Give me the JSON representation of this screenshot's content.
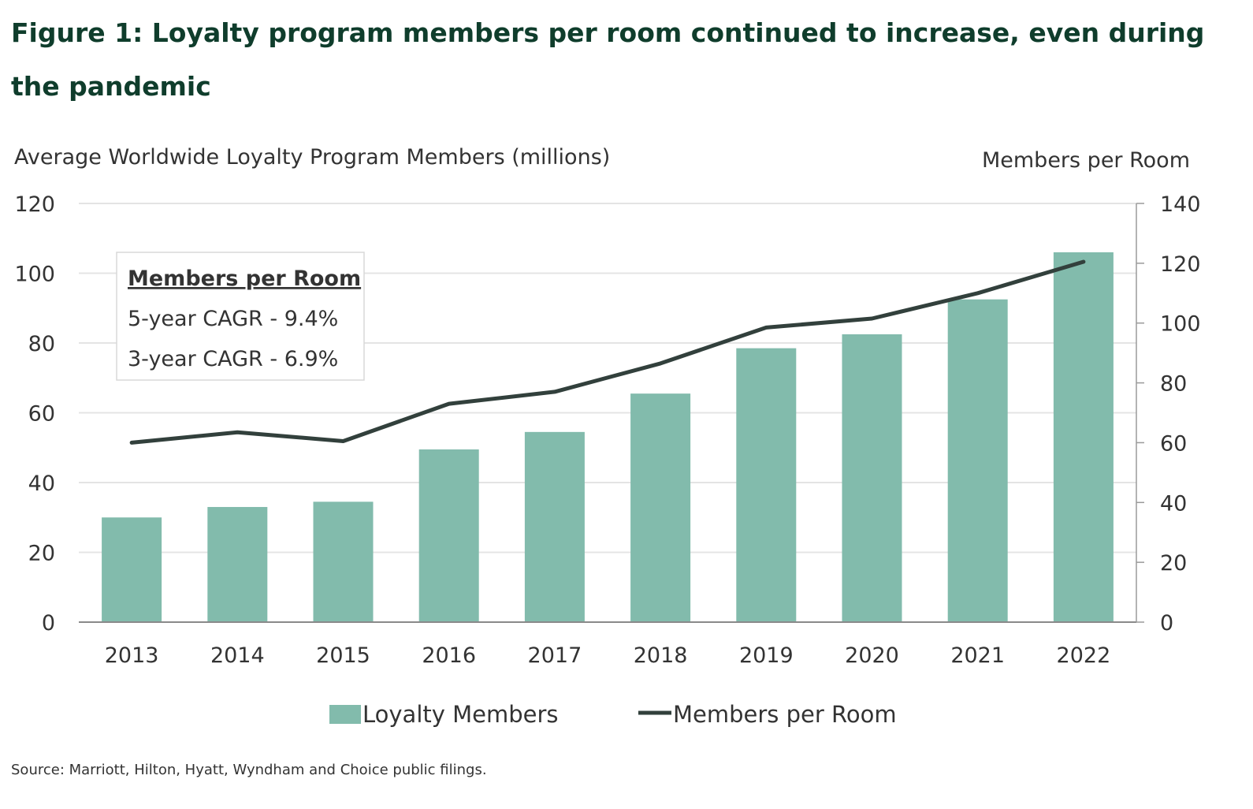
{
  "title": "Figure 1: Loyalty program members per room continued to increase, even during the pandemic",
  "source": "Source: Marriott, Hilton, Hyatt, Wyndham and Choice public filings.",
  "colors": {
    "title": "#0f3d2c",
    "bar": "#82bbac",
    "line": "#32403c",
    "grid": "#e4e4e4",
    "text": "#333333"
  },
  "callout": {
    "heading": "Members per Room",
    "lines": [
      "5-year CAGR - 9.4%",
      "3-year CAGR - 6.9%"
    ]
  },
  "chart_data": {
    "type": "bar",
    "title": "Figure 1: Loyalty program members per room continued to increase, even during the pandemic",
    "categories": [
      "2013",
      "2014",
      "2015",
      "2016",
      "2017",
      "2018",
      "2019",
      "2020",
      "2021",
      "2022"
    ],
    "ylabel_left": "Average Worldwide Loyalty Program Members (millions)",
    "ylabel_right": "Members per Room",
    "y_left": {
      "min": 0,
      "max": 120,
      "ticks": [
        0,
        20,
        40,
        60,
        80,
        100,
        120
      ]
    },
    "y_right": {
      "min": 0,
      "max": 140,
      "ticks": [
        0,
        20,
        40,
        60,
        80,
        100,
        120,
        140
      ]
    },
    "grid": true,
    "legend_position": "bottom",
    "series": [
      {
        "name": "Loyalty Members",
        "type": "bar",
        "axis": "left",
        "values": [
          30,
          33,
          34.5,
          49.5,
          54.5,
          65.5,
          78.5,
          82.5,
          92.5,
          106
        ]
      },
      {
        "name": "Members per Room",
        "type": "line",
        "axis": "right",
        "values": [
          60,
          63.5,
          60.5,
          73,
          77,
          86.5,
          98.5,
          101.5,
          110,
          120.5
        ]
      }
    ]
  }
}
